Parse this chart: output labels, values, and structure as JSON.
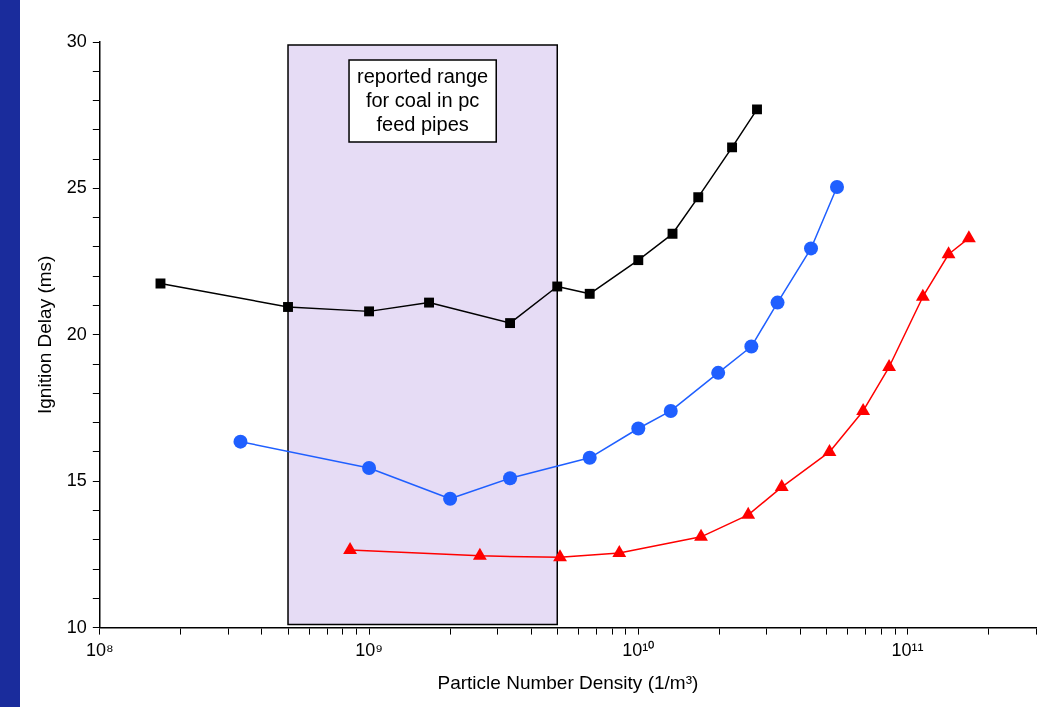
{
  "chart_data": {
    "type": "line",
    "xlabel": "Particle Number Density (1/m³)",
    "ylabel": "Ignition Delay (ms)",
    "log": "x",
    "grid": false,
    "legend": false,
    "line_style": "solid",
    "xlim": [
      100000000.0,
      300000000000.0
    ],
    "ylim": [
      10,
      30
    ],
    "xticks": [
      {
        "value": 100000000.0,
        "label": "10⁸"
      },
      {
        "value": 200000000.0,
        "label": null
      },
      {
        "value": 300000000.0,
        "label": null
      },
      {
        "value": 400000000.0,
        "label": null
      },
      {
        "value": 500000000.0,
        "label": null
      },
      {
        "value": 600000000.0,
        "label": null
      },
      {
        "value": 700000000.0,
        "label": null
      },
      {
        "value": 800000000.0,
        "label": null
      },
      {
        "value": 900000000.0,
        "label": null
      },
      {
        "value": 1000000000.0,
        "label": "10⁹"
      },
      {
        "value": 2000000000.0,
        "label": null
      },
      {
        "value": 3000000000.0,
        "label": null
      },
      {
        "value": 4000000000.0,
        "label": null
      },
      {
        "value": 5000000000.0,
        "label": null
      },
      {
        "value": 6000000000.0,
        "label": null
      },
      {
        "value": 7000000000.0,
        "label": null
      },
      {
        "value": 8000000000.0,
        "label": null
      },
      {
        "value": 9000000000.0,
        "label": null
      },
      {
        "value": 10000000000.0,
        "label": "10¹⁰"
      },
      {
        "value": 20000000000.0,
        "label": null
      },
      {
        "value": 30000000000.0,
        "label": null
      },
      {
        "value": 40000000000.0,
        "label": null
      },
      {
        "value": 50000000000.0,
        "label": null
      },
      {
        "value": 60000000000.0,
        "label": null
      },
      {
        "value": 70000000000.0,
        "label": null
      },
      {
        "value": 80000000000.0,
        "label": null
      },
      {
        "value": 90000000000.0,
        "label": null
      },
      {
        "value": 100000000000.0,
        "label": "10¹¹"
      },
      {
        "value": 200000000000.0,
        "label": null
      },
      {
        "value": 300000000000.0,
        "label": null
      }
    ],
    "yticks": [
      10,
      {
        "value": 11,
        "label": null
      },
      {
        "value": 12,
        "label": null
      },
      {
        "value": 13,
        "label": null
      },
      {
        "value": 14,
        "label": null
      },
      15,
      {
        "value": 16,
        "label": null
      },
      {
        "value": 17,
        "label": null
      },
      {
        "value": 18,
        "label": null
      },
      {
        "value": 19,
        "label": null
      },
      20,
      {
        "value": 21,
        "label": null
      },
      {
        "value": 22,
        "label": null
      },
      {
        "value": 23,
        "label": null
      },
      {
        "value": 24,
        "label": null
      },
      25,
      {
        "value": 26,
        "label": null
      },
      {
        "value": 27,
        "label": null
      },
      {
        "value": 28,
        "label": null
      },
      {
        "value": 29,
        "label": null
      },
      30
    ],
    "bands": [
      {
        "axis": "x",
        "from": 500000000.0,
        "to": 5000000000.0,
        "label": "reported range\nfor coal in pc\nfeed pipes",
        "color": "#e6dcf5"
      }
    ],
    "series": [
      {
        "color": "#000000",
        "marker": "square",
        "x": [
          168000000.0,
          500000000.0,
          1000000000.0,
          1670000000.0,
          3340000000.0,
          5000000000.0,
          6600000000.0,
          10000000000.0,
          13400000000.0,
          16700000000.0,
          22300000000.0,
          27600000000.0
        ],
        "values": [
          21.75,
          20.95,
          20.8,
          21.1,
          20.4,
          21.65,
          21.4,
          22.55,
          23.45,
          24.7,
          26.4,
          27.7
        ]
      },
      {
        "color": "#1f5fff",
        "marker": "circle",
        "x": [
          333000000.0,
          1000000000.0,
          2000000000.0,
          3340000000.0,
          6600000000.0,
          10000000000.0,
          13200000000.0,
          19800000000.0,
          26300000000.0,
          32900000000.0,
          43800000000.0,
          54700000000.0
        ],
        "values": [
          16.35,
          15.45,
          14.4,
          15.1,
          15.8,
          16.8,
          17.4,
          18.7,
          19.6,
          21.1,
          22.95,
          25.05
        ]
      },
      {
        "color": "#ff0000",
        "marker": "triangle",
        "x": [
          850000000.0,
          2580000000.0,
          5120000000.0,
          8500000000.0,
          17100000000.0,
          25600000000.0,
          34100000000.0,
          51300000000.0,
          68400000000.0,
          85400000000.0,
          114000000000.0,
          142000000000.0,
          169000000000.0
        ],
        "values": [
          12.65,
          12.45,
          12.4,
          12.55,
          13.1,
          13.85,
          14.8,
          16.0,
          17.4,
          18.9,
          21.3,
          22.75,
          23.3
        ]
      }
    ]
  }
}
